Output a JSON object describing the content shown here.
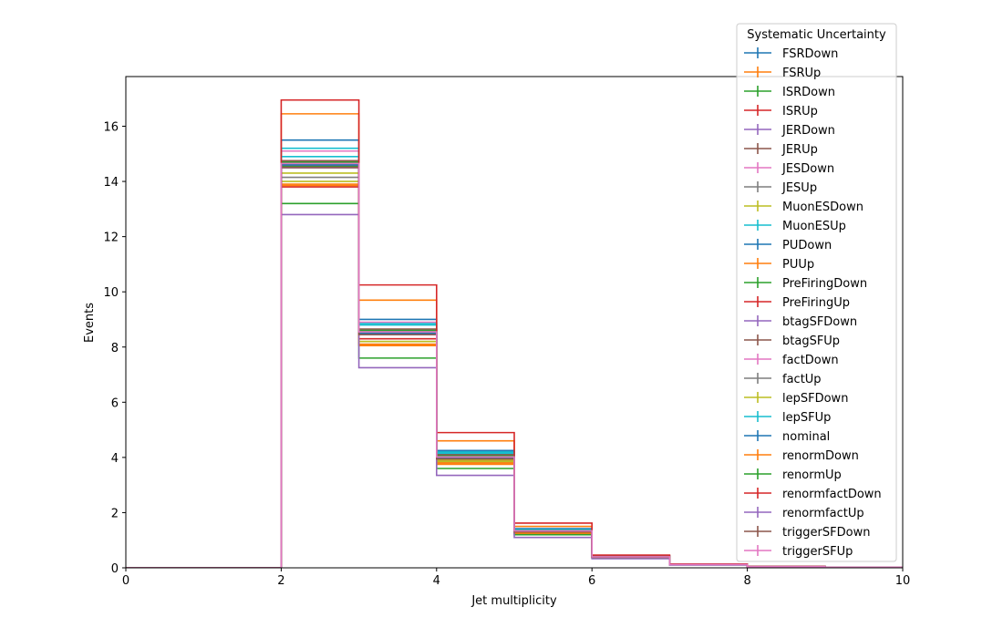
{
  "chart_data": {
    "type": "step-histogram",
    "xlabel": "Jet multiplicity",
    "ylabel": "Events",
    "xlim": [
      0,
      10
    ],
    "ylim": [
      0,
      17.8
    ],
    "xticks": [
      0,
      2,
      4,
      6,
      8,
      10
    ],
    "yticks": [
      0,
      2,
      4,
      6,
      8,
      10,
      12,
      14,
      16
    ],
    "bin_edges": [
      0,
      1,
      2,
      3,
      4,
      5,
      6,
      7,
      8,
      9,
      10
    ],
    "legend_title": "Systematic Uncertainty",
    "legend_position": "top-right, outside axes",
    "series": [
      {
        "name": "FSRDown",
        "color": "#1f77b4",
        "values": [
          0,
          0,
          14.65,
          8.5,
          4.05,
          1.35,
          0.4,
          0.12,
          0.05,
          0.02
        ]
      },
      {
        "name": "FSRUp",
        "color": "#ff7f0e",
        "values": [
          0,
          0,
          16.45,
          9.7,
          4.6,
          1.5,
          0.44,
          0.13,
          0.05,
          0.02
        ]
      },
      {
        "name": "ISRDown",
        "color": "#2ca02c",
        "values": [
          0,
          0,
          14.55,
          8.5,
          3.95,
          1.3,
          0.39,
          0.12,
          0.04,
          0.02
        ]
      },
      {
        "name": "ISRUp",
        "color": "#d62728",
        "values": [
          0,
          0,
          14.7,
          8.55,
          3.98,
          1.32,
          0.4,
          0.12,
          0.04,
          0.02
        ]
      },
      {
        "name": "JERDown",
        "color": "#9467bd",
        "values": [
          0,
          0,
          14.6,
          8.45,
          4.0,
          1.33,
          0.4,
          0.12,
          0.04,
          0.02
        ]
      },
      {
        "name": "JERUp",
        "color": "#8c564b",
        "values": [
          0,
          0,
          14.58,
          8.5,
          4.0,
          1.33,
          0.4,
          0.12,
          0.04,
          0.02
        ]
      },
      {
        "name": "JESDown",
        "color": "#e377c2",
        "values": [
          0,
          0,
          15.1,
          8.9,
          4.2,
          1.4,
          0.42,
          0.13,
          0.05,
          0.02
        ]
      },
      {
        "name": "JESUp",
        "color": "#7f7f7f",
        "values": [
          0,
          0,
          14.15,
          8.1,
          3.8,
          1.25,
          0.38,
          0.11,
          0.04,
          0.02
        ]
      },
      {
        "name": "MuonESDown",
        "color": "#bcbd22",
        "values": [
          0,
          0,
          14.0,
          8.2,
          3.85,
          1.28,
          0.38,
          0.11,
          0.04,
          0.02
        ]
      },
      {
        "name": "MuonESUp",
        "color": "#17becf",
        "values": [
          0,
          0,
          15.2,
          8.85,
          4.2,
          1.4,
          0.42,
          0.13,
          0.05,
          0.02
        ]
      },
      {
        "name": "PUDown",
        "color": "#1f77b4",
        "values": [
          0,
          0,
          15.5,
          9.0,
          4.25,
          1.42,
          0.43,
          0.13,
          0.05,
          0.02
        ]
      },
      {
        "name": "PUUp",
        "color": "#ff7f0e",
        "values": [
          0,
          0,
          13.85,
          8.05,
          3.75,
          1.25,
          0.37,
          0.11,
          0.04,
          0.02
        ]
      },
      {
        "name": "PreFiringDown",
        "color": "#2ca02c",
        "values": [
          0,
          0,
          13.2,
          7.6,
          3.6,
          1.2,
          0.36,
          0.11,
          0.04,
          0.02
        ]
      },
      {
        "name": "PreFiringUp",
        "color": "#d62728",
        "values": [
          0,
          0,
          13.8,
          8.3,
          3.9,
          1.3,
          0.39,
          0.12,
          0.04,
          0.02
        ]
      },
      {
        "name": "btagSFDown",
        "color": "#9467bd",
        "values": [
          0,
          0,
          14.5,
          8.6,
          4.1,
          1.35,
          0.4,
          0.12,
          0.04,
          0.02
        ]
      },
      {
        "name": "btagSFUp",
        "color": "#8c564b",
        "values": [
          0,
          0,
          14.75,
          8.65,
          4.1,
          1.36,
          0.41,
          0.12,
          0.05,
          0.02
        ]
      },
      {
        "name": "factDown",
        "color": "#e377c2",
        "values": [
          0,
          0,
          14.62,
          8.52,
          4.02,
          1.34,
          0.4,
          0.12,
          0.04,
          0.02
        ]
      },
      {
        "name": "factUp",
        "color": "#7f7f7f",
        "values": [
          0,
          0,
          14.6,
          8.5,
          4.0,
          1.33,
          0.4,
          0.12,
          0.04,
          0.02
        ]
      },
      {
        "name": "lepSFDown",
        "color": "#bcbd22",
        "values": [
          0,
          0,
          14.3,
          8.2,
          3.9,
          1.3,
          0.39,
          0.12,
          0.04,
          0.02
        ]
      },
      {
        "name": "lepSFUp",
        "color": "#17becf",
        "values": [
          0,
          0,
          14.9,
          8.8,
          4.15,
          1.38,
          0.41,
          0.12,
          0.05,
          0.02
        ]
      },
      {
        "name": "nominal",
        "color": "#1f77b4",
        "values": [
          0,
          0,
          14.6,
          8.5,
          4.0,
          1.33,
          0.4,
          0.12,
          0.04,
          0.02
        ]
      },
      {
        "name": "renormDown",
        "color": "#ff7f0e",
        "values": [
          0,
          0,
          13.9,
          8.1,
          3.8,
          1.27,
          0.38,
          0.11,
          0.04,
          0.02
        ]
      },
      {
        "name": "renormUp",
        "color": "#2ca02c",
        "values": [
          0,
          0,
          14.7,
          8.6,
          4.05,
          1.35,
          0.4,
          0.12,
          0.04,
          0.02
        ]
      },
      {
        "name": "renormfactDown",
        "color": "#d62728",
        "values": [
          0,
          0,
          16.95,
          10.25,
          4.9,
          1.62,
          0.46,
          0.14,
          0.05,
          0.02
        ]
      },
      {
        "name": "renormfactUp",
        "color": "#9467bd",
        "values": [
          0,
          0,
          12.8,
          7.25,
          3.35,
          1.1,
          0.33,
          0.1,
          0.04,
          0.02
        ]
      },
      {
        "name": "triggerSFDown",
        "color": "#8c564b",
        "values": [
          0,
          0,
          14.5,
          8.45,
          3.95,
          1.3,
          0.39,
          0.12,
          0.04,
          0.02
        ]
      },
      {
        "name": "triggerSFUp",
        "color": "#e377c2",
        "values": [
          0,
          0,
          14.65,
          8.55,
          4.02,
          1.34,
          0.4,
          0.12,
          0.04,
          0.02
        ]
      }
    ]
  }
}
